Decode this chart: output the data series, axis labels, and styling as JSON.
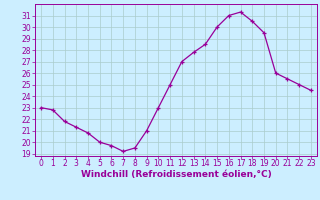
{
  "x": [
    0,
    1,
    2,
    3,
    4,
    5,
    6,
    7,
    8,
    9,
    10,
    11,
    12,
    13,
    14,
    15,
    16,
    17,
    18,
    19,
    20,
    21,
    22,
    23
  ],
  "y": [
    23,
    22.8,
    21.8,
    21.3,
    20.8,
    20.0,
    19.7,
    19.2,
    19.5,
    21.0,
    23.0,
    25.0,
    27.0,
    27.8,
    28.5,
    30.0,
    31.0,
    31.3,
    30.5,
    29.5,
    26.0,
    25.5,
    25.0,
    24.5
  ],
  "xlabel": "Windchill (Refroidissement éolien,°C)",
  "ylim_min": 18.8,
  "ylim_max": 32.0,
  "xlim_min": -0.5,
  "xlim_max": 23.5,
  "yticks": [
    19,
    20,
    21,
    22,
    23,
    24,
    25,
    26,
    27,
    28,
    29,
    30,
    31
  ],
  "xticks": [
    0,
    1,
    2,
    3,
    4,
    5,
    6,
    7,
    8,
    9,
    10,
    11,
    12,
    13,
    14,
    15,
    16,
    17,
    18,
    19,
    20,
    21,
    22,
    23
  ],
  "line_color": "#990099",
  "marker_color": "#990099",
  "bg_color": "#cceeff",
  "grid_color": "#aacccc",
  "spine_color": "#990099",
  "tick_color": "#990099",
  "label_color": "#990099",
  "tick_labelsize": 5.5,
  "xlabel_fontsize": 6.5,
  "xlabel_fontweight": "bold"
}
